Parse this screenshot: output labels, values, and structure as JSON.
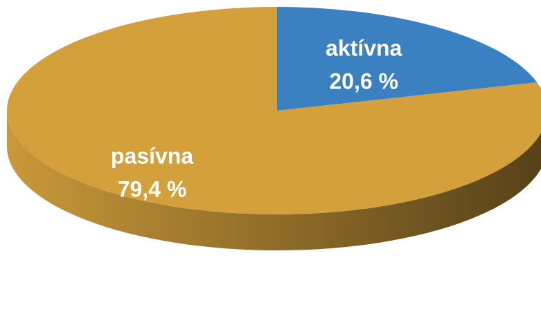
{
  "chart_data": {
    "type": "pie",
    "categories": [
      "aktívna",
      "pasívna"
    ],
    "values": [
      20.6,
      79.4
    ],
    "value_labels": [
      "20,6 %",
      "79,4 %"
    ],
    "colors": [
      "#3b80c0",
      "#d4a03c"
    ]
  }
}
